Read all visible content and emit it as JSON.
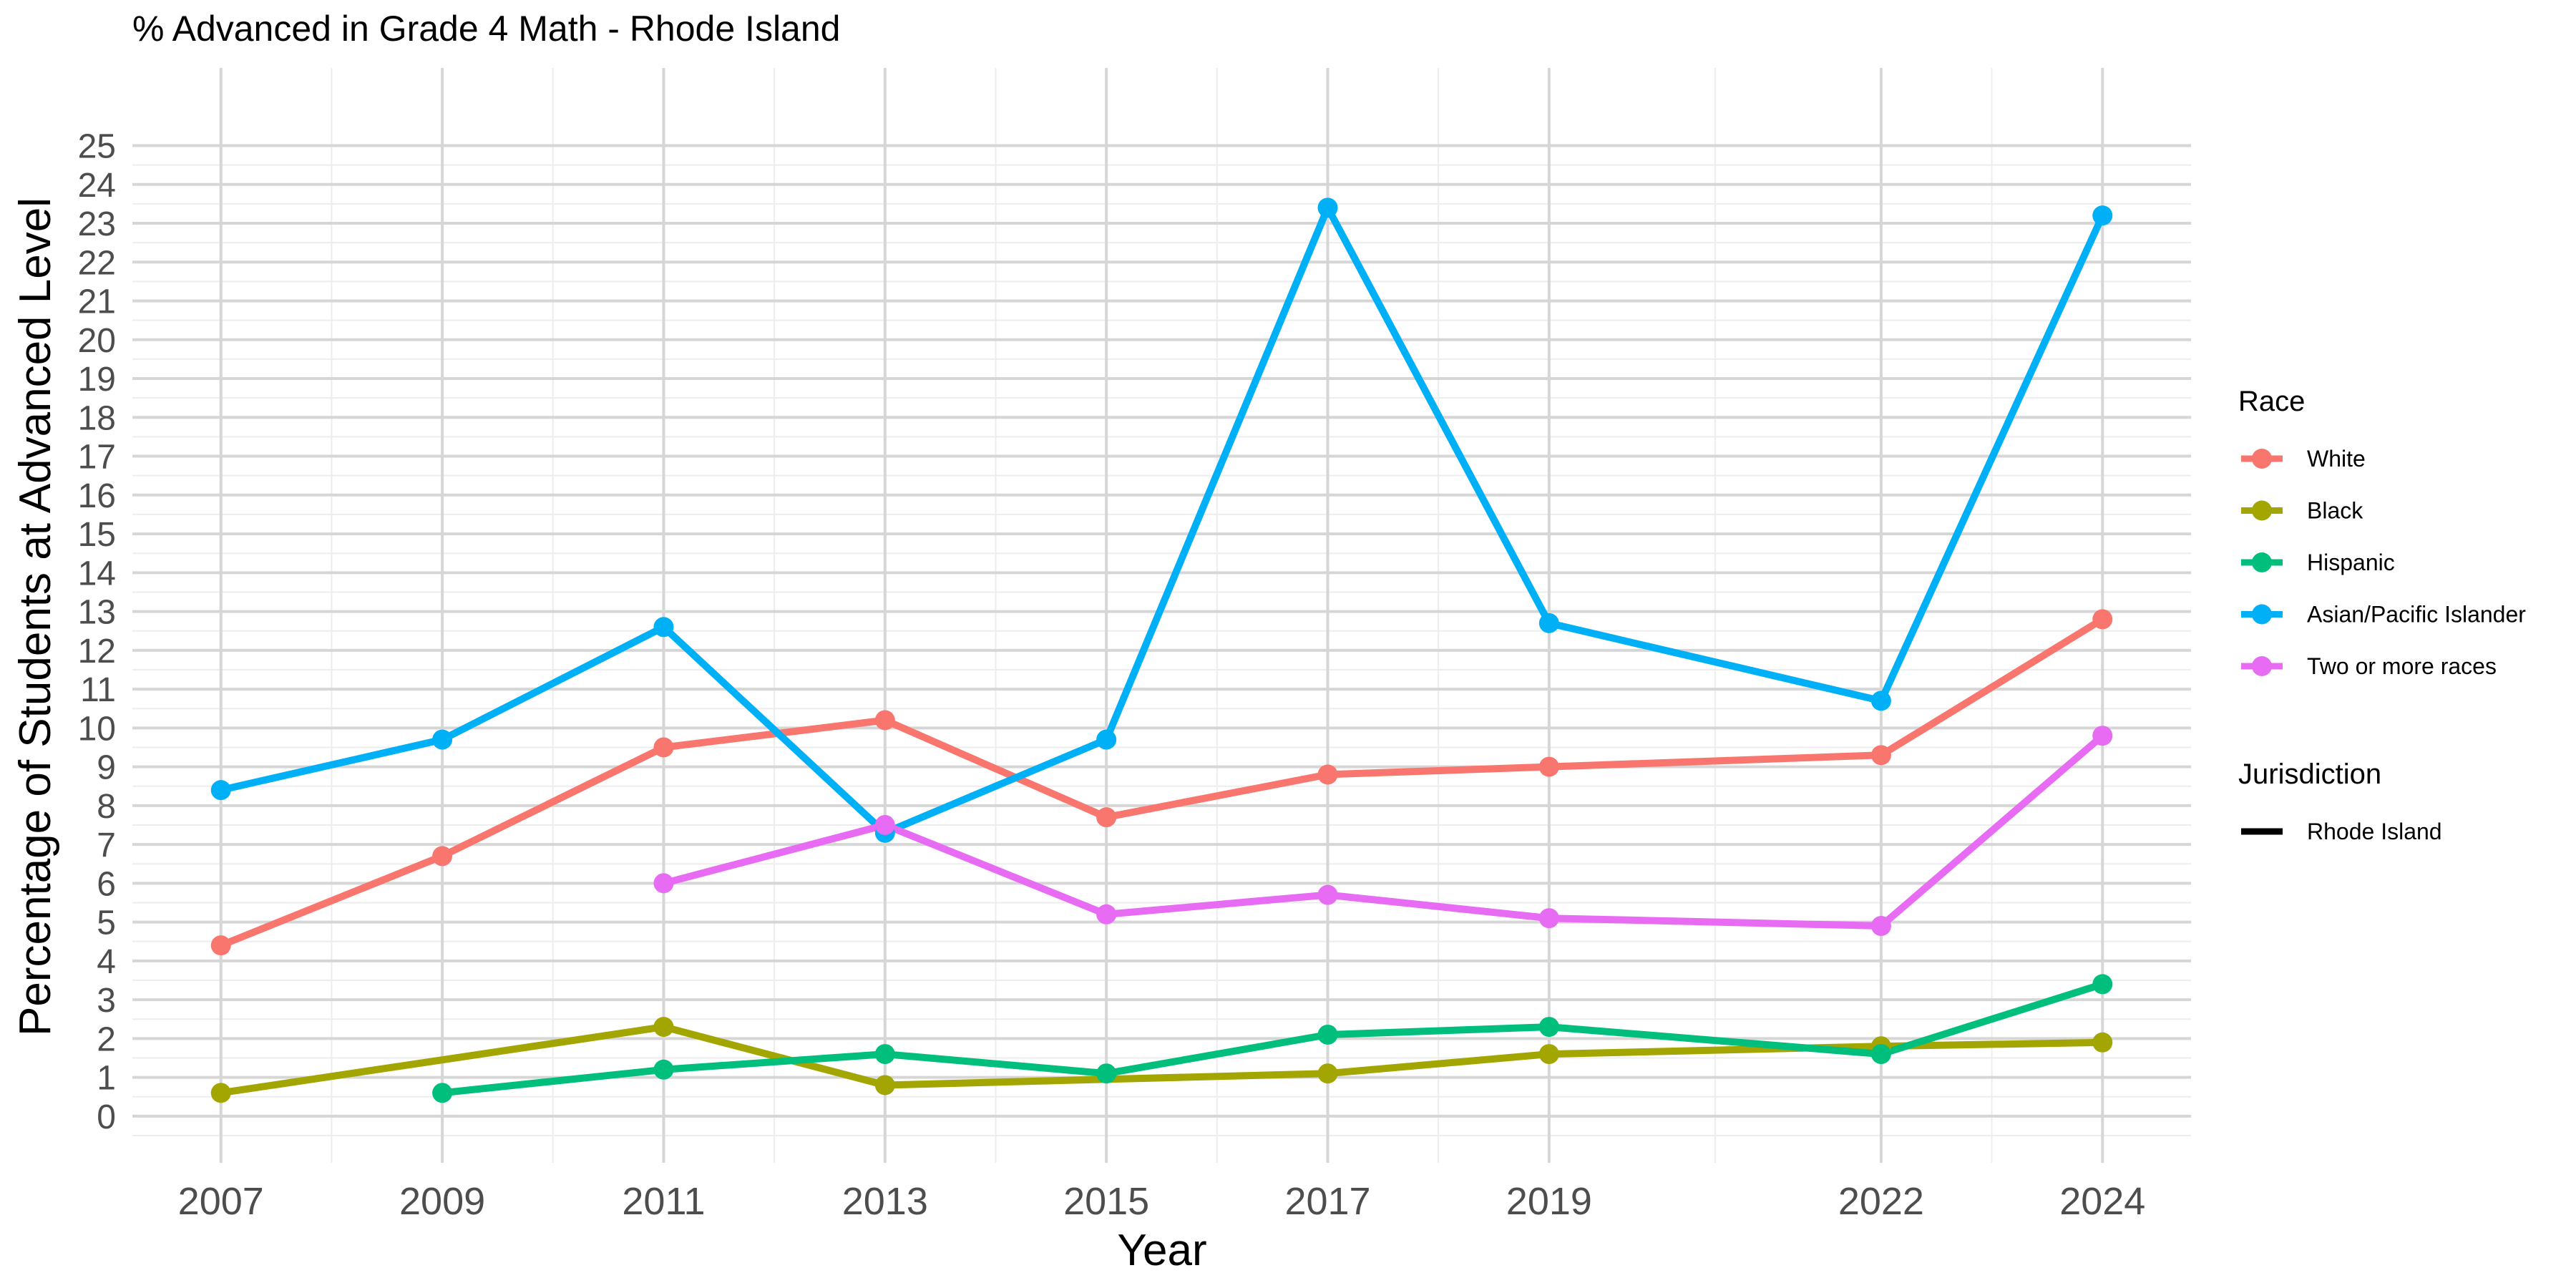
{
  "chart_data": {
    "type": "line",
    "title": "% Advanced in Grade 4 Math - Rhode Island",
    "xlabel": "Year",
    "ylabel": "Percentage of Students at Advanced Level",
    "x": [
      2007,
      2009,
      2011,
      2013,
      2015,
      2017,
      2019,
      2022,
      2024
    ],
    "x_ticks": [
      "2007",
      "2009",
      "2011",
      "2013",
      "2015",
      "2017",
      "2019",
      "2022",
      "2024"
    ],
    "xlim": [
      2006.2,
      2024.8
    ],
    "ylim": [
      -1.2,
      27
    ],
    "y_ticks": [
      "0",
      "1",
      "2",
      "3",
      "4",
      "5",
      "6",
      "7",
      "8",
      "9",
      "10",
      "11",
      "12",
      "13",
      "14",
      "15",
      "16",
      "17",
      "18",
      "19",
      "20",
      "21",
      "22",
      "23",
      "24",
      "25"
    ],
    "grid": true,
    "legend_position": "right",
    "series": [
      {
        "name": "White",
        "color": "#F8766D",
        "values": [
          4.4,
          6.7,
          9.5,
          10.2,
          7.7,
          8.8,
          9.0,
          9.3,
          12.8
        ]
      },
      {
        "name": "Black",
        "color": "#A3A500",
        "values": [
          0.6,
          null,
          2.3,
          0.8,
          null,
          1.1,
          1.6,
          1.8,
          1.9
        ]
      },
      {
        "name": "Hispanic",
        "color": "#00BF7D",
        "values": [
          null,
          0.6,
          1.2,
          1.6,
          1.1,
          2.1,
          2.3,
          1.6,
          3.4
        ]
      },
      {
        "name": "Asian/Pacific Islander",
        "color": "#00B0F6",
        "values": [
          8.4,
          9.7,
          12.6,
          7.3,
          9.7,
          23.4,
          12.7,
          10.7,
          23.2
        ]
      },
      {
        "name": "Two or more races",
        "color": "#E76BF3",
        "values": [
          null,
          null,
          6.0,
          7.5,
          5.2,
          5.7,
          5.1,
          4.9,
          9.8
        ]
      }
    ],
    "legend": {
      "race_title": "Race",
      "jurisdiction_title": "Jurisdiction",
      "jurisdiction_items": [
        "Rhode Island"
      ]
    }
  }
}
